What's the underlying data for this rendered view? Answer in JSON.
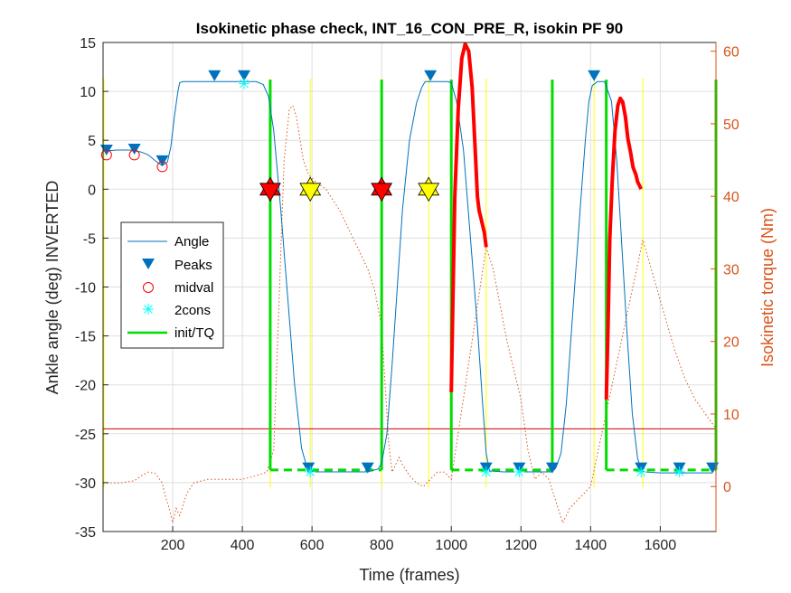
{
  "chart_data": {
    "type": "line",
    "title": "Isokinetic phase check, INT_16_CON_PRE_R, isokin PF 90",
    "xlabel": "Time (frames)",
    "ylabel": "Ankle angle (deg) INVERTED",
    "ylabel_right": "Isokinetic torque (Nm)",
    "xlim": [
      0,
      1760
    ],
    "ylim": [
      -35,
      15
    ],
    "ylim_right": [
      -6.2,
      61.2
    ],
    "grid": true,
    "legend_position": "center-left",
    "x_ticks": [
      "200",
      "400",
      "600",
      "800",
      "1000",
      "1200",
      "1400",
      "1600"
    ],
    "y_ticks": [
      "15",
      "10",
      "5",
      "0",
      "-5",
      "-10",
      "-15",
      "-20",
      "-25",
      "-30",
      "-35"
    ],
    "y_ticks_right": [
      "0",
      "10",
      "20",
      "30",
      "40",
      "50",
      "60"
    ],
    "colors": {
      "angle": "#0072BD",
      "peaks": "#0072BD",
      "midval": "#FF0000",
      "cons": "#00FFFF",
      "init": "#00DD00",
      "torque": "#D95319",
      "torque_phase": "#FF0000",
      "hline": "#CC0000",
      "vmark": "#FFFF00",
      "star_red": "#FF0000",
      "star_yellow": "#FFFF00"
    },
    "series": [
      {
        "name": "Angle",
        "x": [
          0,
          40,
          80,
          110,
          130,
          150,
          170,
          185,
          195,
          205,
          215,
          220,
          230,
          260,
          300,
          350,
          400,
          440,
          460,
          475,
          490,
          510,
          530,
          550,
          570,
          585,
          595,
          610,
          640,
          700,
          760,
          790,
          800,
          815,
          830,
          845,
          860,
          880,
          900,
          915,
          925,
          935,
          945,
          970,
          990,
          1000,
          1015,
          1035,
          1055,
          1075,
          1090,
          1100,
          1110,
          1150,
          1200,
          1250,
          1290,
          1300,
          1315,
          1330,
          1350,
          1370,
          1385,
          1395,
          1405,
          1420,
          1440,
          1460,
          1475,
          1490,
          1505,
          1520,
          1535,
          1545,
          1555,
          1600,
          1660,
          1720,
          1750
        ],
        "y": [
          3.9,
          4.0,
          4.0,
          3.8,
          3.5,
          2.9,
          2.4,
          2.8,
          4.4,
          7.5,
          10.0,
          10.9,
          11.0,
          11.0,
          11.0,
          11.0,
          11.0,
          11.0,
          10.7,
          9.5,
          6.0,
          -2.0,
          -11.0,
          -20.0,
          -26.5,
          -28.4,
          -28.8,
          -28.9,
          -28.9,
          -28.9,
          -28.9,
          -28.6,
          -28.0,
          -25.0,
          -18.0,
          -10.0,
          -2.0,
          5.0,
          8.8,
          10.4,
          11.0,
          11.0,
          11.0,
          11.0,
          11.0,
          10.9,
          9.0,
          4.0,
          -5.0,
          -14.0,
          -22.0,
          -27.0,
          -28.8,
          -28.9,
          -28.9,
          -28.9,
          -28.9,
          -28.5,
          -27.0,
          -22.0,
          -12.0,
          -2.0,
          5.0,
          9.0,
          10.6,
          11.0,
          11.0,
          9.0,
          3.0,
          -6.0,
          -15.0,
          -23.0,
          -27.5,
          -28.7,
          -28.9,
          -29.0,
          -29.0,
          -29.0,
          -29.0
        ]
      },
      {
        "name": "Peaks",
        "x": [
          10,
          90,
          170,
          320,
          405,
          940,
          1410,
          590,
          760,
          1100,
          1195,
          1290,
          1545,
          1655,
          1750
        ],
        "y": [
          4.0,
          4.1,
          2.9,
          11.6,
          11.6,
          11.6,
          11.6,
          -28.5,
          -28.5,
          -28.5,
          -28.5,
          -28.5,
          -28.5,
          -28.5,
          -28.5
        ]
      },
      {
        "name": "midval",
        "x": [
          10,
          90,
          170
        ],
        "y": [
          3.5,
          3.5,
          2.3
        ]
      },
      {
        "name": "2cons",
        "x": [
          405,
          595,
          1100,
          1195,
          1545,
          1655
        ],
        "y": [
          10.8,
          -28.9,
          -28.9,
          -28.9,
          -28.9,
          -28.9
        ]
      },
      {
        "name": "init/TQ",
        "x": [
          480,
          480,
          800,
          800,
          1000,
          1000,
          1290,
          1290,
          1445,
          1445,
          1760,
          1760
        ],
        "y": [
          11.2,
          -28.7,
          -28.7,
          11.2,
          11.2,
          -28.7,
          -28.7,
          11.2,
          11.2,
          -28.7,
          -28.7,
          11.2
        ]
      }
    ],
    "torque_series": {
      "x": [
        0,
        50,
        90,
        110,
        130,
        150,
        170,
        180,
        190,
        200,
        210,
        220,
        240,
        260,
        300,
        350,
        400,
        440,
        470,
        490,
        505,
        520,
        535,
        545,
        555,
        565,
        575,
        590,
        610,
        640,
        680,
        700,
        720,
        740,
        760,
        780,
        800,
        810,
        820,
        830,
        840,
        850,
        860,
        880,
        900,
        920,
        940,
        960,
        980,
        1000,
        1100,
        1120,
        1140,
        1160,
        1180,
        1200,
        1220,
        1240,
        1260,
        1280,
        1300,
        1320,
        1340,
        1360,
        1380,
        1400,
        1550,
        1580,
        1610,
        1640,
        1670,
        1700,
        1730,
        1760
      ],
      "y": [
        0.5,
        0.5,
        0.8,
        1.5,
        2.0,
        1.8,
        0.5,
        -1.5,
        -3.0,
        -5.0,
        -3.0,
        -4.0,
        -1.0,
        0.5,
        1.0,
        1.0,
        1.0,
        1.5,
        2.0,
        5.0,
        25.0,
        45.0,
        52.0,
        52.5,
        51.0,
        48.0,
        45.0,
        43.0,
        42.0,
        41.0,
        38.0,
        36.0,
        34.0,
        32.0,
        30.0,
        27.0,
        22.0,
        14.0,
        6.0,
        2.0,
        3.0,
        4.0,
        3.0,
        1.5,
        0.5,
        0.0,
        1.0,
        2.0,
        2.0,
        1.0,
        33.0,
        30.0,
        25.0,
        20.0,
        16.0,
        12.0,
        5.0,
        1.0,
        2.0,
        1.0,
        -2.0,
        -5.0,
        -3.0,
        -2.0,
        -1.0,
        0.0,
        34.0,
        29.0,
        24.0,
        19.0,
        15.0,
        12.0,
        10.0,
        8.0
      ]
    },
    "torque_phase": [
      {
        "x": [
          1000,
          1005,
          1010,
          1020,
          1030,
          1040,
          1050,
          1060,
          1070,
          1075,
          1080,
          1085,
          1090,
          1095,
          1100
        ],
        "y": [
          13.0,
          27.0,
          40.0,
          52.0,
          59.0,
          61.0,
          60.0,
          55.0,
          45.0,
          40.0,
          38.0,
          37.0,
          36.0,
          35.0,
          33.0
        ]
      },
      {
        "x": [
          1445,
          1450,
          1455,
          1462,
          1470,
          1478,
          1485,
          1492,
          1500,
          1507,
          1515,
          1522,
          1530,
          1535,
          1540,
          1545
        ],
        "y": [
          12.0,
          22.0,
          34.0,
          42.0,
          49.0,
          52.5,
          53.5,
          53.0,
          51.0,
          48.0,
          46.0,
          44.0,
          43.0,
          42.0,
          41.5,
          41.0
        ]
      }
    ],
    "stars": [
      {
        "color": "red",
        "x": 480,
        "y": 0
      },
      {
        "color": "yellow",
        "x": 595,
        "y": 0
      },
      {
        "color": "red",
        "x": 800,
        "y": 0
      },
      {
        "color": "yellow",
        "x": 935,
        "y": 0
      }
    ],
    "vertical_markers": [
      0,
      480,
      595,
      800,
      935,
      1100,
      1410,
      1550
    ],
    "horizontal_line": -24.5
  }
}
